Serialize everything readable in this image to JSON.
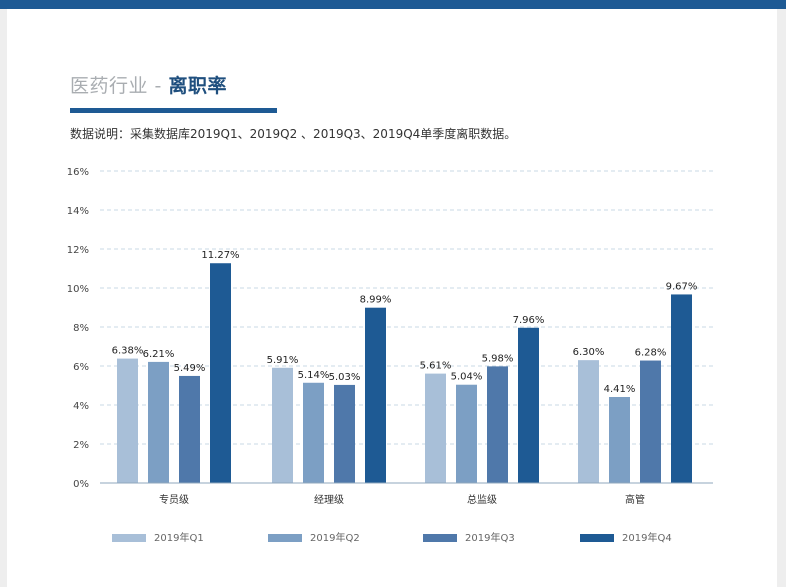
{
  "header": {
    "title_prefix": "医药行业",
    "title_separator": " - ",
    "title_main": "离职率",
    "subtitle": "数据说明：采集数据库2019Q1、2019Q2 、2019Q3、2019Q4单季度离职数据。"
  },
  "colors": {
    "header_bar": "#1e5a94",
    "series": [
      "#a8bfd8",
      "#7c9fc4",
      "#4f78aa",
      "#1e5a94"
    ]
  },
  "chart_data": {
    "type": "bar",
    "title": "",
    "xlabel": "",
    "ylabel": "",
    "categories": [
      "专员级",
      "经理级",
      "总监级",
      "高管"
    ],
    "series": [
      {
        "name": "2019年Q1",
        "values": [
          6.38,
          5.91,
          5.61,
          6.3
        ],
        "labels": [
          "6.38%",
          "5.91%",
          "5.61%",
          "6.30%"
        ]
      },
      {
        "name": "2019年Q2",
        "values": [
          6.21,
          5.14,
          5.04,
          4.41
        ],
        "labels": [
          "6.21%",
          "5.14%",
          "5.04%",
          "4.41%"
        ]
      },
      {
        "name": "2019年Q3",
        "values": [
          5.49,
          5.03,
          5.98,
          6.28
        ],
        "labels": [
          "5.49%",
          "5.03%",
          "5.98%",
          "6.28%"
        ]
      },
      {
        "name": "2019年Q4",
        "values": [
          11.27,
          8.99,
          7.96,
          9.67
        ],
        "labels": [
          "11.27%",
          "8.99%",
          "7.96%",
          "9.67%"
        ]
      }
    ],
    "ylim": [
      0,
      16
    ],
    "yticks": [
      0,
      2,
      4,
      6,
      8,
      10,
      12,
      14,
      16
    ],
    "ytick_labels": [
      "0%",
      "2%",
      "4%",
      "6%",
      "8%",
      "10%",
      "12%",
      "14%",
      "16%"
    ],
    "grid": true,
    "legend_position": "bottom"
  }
}
